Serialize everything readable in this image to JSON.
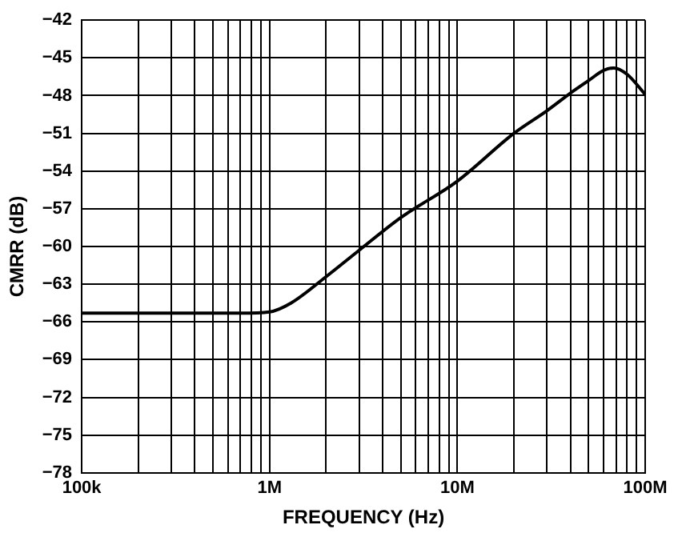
{
  "chart_data": {
    "type": "line",
    "xlabel": "FREQUENCY (Hz)",
    "ylabel": "CMRR (dB)",
    "log": "x",
    "grid": true,
    "legend": false,
    "marker": "none",
    "line_style": "solid",
    "xlim": [
      100000,
      100000000
    ],
    "xticks": [
      {
        "value": 100000,
        "label": "100k"
      },
      {
        "value": 200000,
        "label": null
      },
      {
        "value": 300000,
        "label": null
      },
      {
        "value": 400000,
        "label": null
      },
      {
        "value": 500000,
        "label": null
      },
      {
        "value": 600000,
        "label": null
      },
      {
        "value": 700000,
        "label": null
      },
      {
        "value": 800000,
        "label": null
      },
      {
        "value": 900000,
        "label": null
      },
      {
        "value": 1000000,
        "label": "1M"
      },
      {
        "value": 2000000,
        "label": null
      },
      {
        "value": 3000000,
        "label": null
      },
      {
        "value": 4000000,
        "label": null
      },
      {
        "value": 5000000,
        "label": null
      },
      {
        "value": 6000000,
        "label": null
      },
      {
        "value": 7000000,
        "label": null
      },
      {
        "value": 8000000,
        "label": null
      },
      {
        "value": 9000000,
        "label": null
      },
      {
        "value": 10000000,
        "label": "10M"
      },
      {
        "value": 20000000,
        "label": null
      },
      {
        "value": 30000000,
        "label": null
      },
      {
        "value": 40000000,
        "label": null
      },
      {
        "value": 50000000,
        "label": null
      },
      {
        "value": 60000000,
        "label": null
      },
      {
        "value": 70000000,
        "label": null
      },
      {
        "value": 80000000,
        "label": null
      },
      {
        "value": 90000000,
        "label": null
      },
      {
        "value": 100000000,
        "label": "100M"
      }
    ],
    "ylim": [
      -78,
      -42
    ],
    "yticks": [
      -78,
      -75,
      -72,
      -69,
      -66,
      -63,
      -60,
      -57,
      -54,
      -51,
      -48,
      -45,
      -42
    ],
    "x": [
      100000,
      300000,
      700000,
      1000000,
      1300000,
      2000000,
      3000000,
      5000000,
      10000000,
      20000000,
      30000000,
      40000000,
      50000000,
      60000000,
      68000000,
      80000000,
      100000000
    ],
    "series": [
      {
        "color": "#000000",
        "values": [
          -65.3,
          -65.3,
          -65.3,
          -65.2,
          -64.5,
          -62.4,
          -60.3,
          -57.7,
          -54.8,
          -51.0,
          -49.2,
          -47.8,
          -46.8,
          -46.0,
          -45.8,
          -46.3,
          -47.9
        ]
      }
    ]
  }
}
